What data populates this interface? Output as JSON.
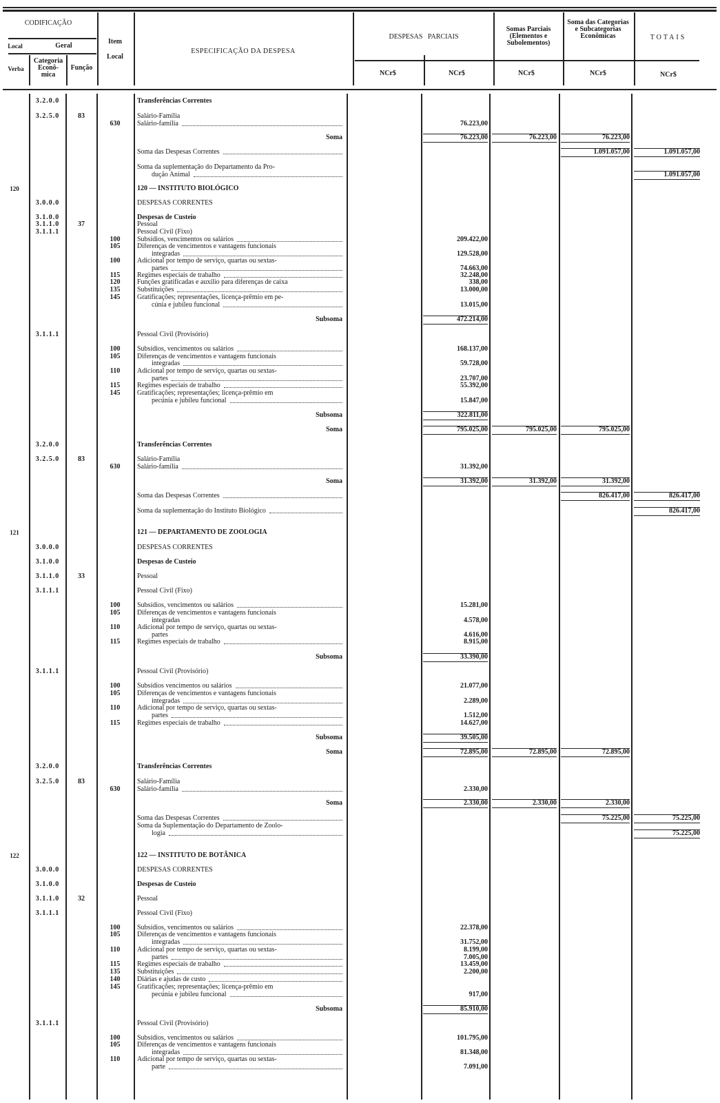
{
  "header": {
    "codificacao": "CODIFICAÇÃO",
    "local": "Local",
    "geral": "Geral",
    "verba": "Verba",
    "categoria_economica": "Categoria Econô- mica",
    "funcao": "Função",
    "item_local": "Item Local",
    "especificacao": "ESPECIFICAÇÃO DA DESPESA",
    "despesas_parciais": "DESPESAS   PARCIAIS",
    "somas_parciais": "Somas Parciais (Elementos e Subolementos)",
    "soma_categorias": "Soma das Categorias e Subcategorias Econômicas",
    "totais": "TOTAIS",
    "currency": "NCr$"
  },
  "lines": [
    {
      "c": "3.2.0.0",
      "t": "Transferências Correntes",
      "s": "bold"
    },
    {
      "c": "3.2.5.0",
      "f": "83",
      "t": "Salário-Família"
    },
    {
      "i": "630",
      "t": "Salário-família",
      "L": true,
      "c2": "76.223,00"
    },
    {
      "t": "Soma",
      "s": "right",
      "c2": "76.223,00",
      "c3": "76.223,00",
      "c4": "76.223,00",
      "tot": true
    },
    {
      "t": "Soma das Despesas Correntes",
      "L": true,
      "c4": "1.091.057,00",
      "c5": "1.091.057,00",
      "tot": true
    },
    {
      "t": "Soma da suplementação do Departamento da Pro-"
    },
    {
      "t": "dução Animal",
      "s": "cont",
      "L": true,
      "c5": "1.091.057,00",
      "tot": true
    },
    {
      "v": "120",
      "t": "120 — INSTITUTO BIOLÓGICO",
      "s": "bold"
    },
    {
      "c": "3.0.0.0",
      "t": "DESPESAS CORRENTES"
    },
    {
      "c": "3.1.0.0",
      "t": "Despesas de Custeio",
      "s": "bold"
    },
    {
      "c": "3.1.1.0",
      "f": "37",
      "t": "Pessoal"
    },
    {
      "c": "3.1.1.1",
      "t": "Pessoal Civil (Fixo)"
    },
    {
      "i": "100",
      "t": "Subsídios, vencimentos ou salários",
      "L": true,
      "c2": "209.422,00"
    },
    {
      "i": "105",
      "t": "Diferenças de vencimentos e vantagens funcionais"
    },
    {
      "t": "integradas",
      "s": "cont",
      "L": true,
      "c2": "129.528,00"
    },
    {
      "i": "100",
      "t": "Adicional por tempo de serviço, quartas ou sextas-"
    },
    {
      "t": "partes",
      "s": "cont",
      "L": true,
      "c2": "74.663,00"
    },
    {
      "i": "115",
      "t": "Regimes especiais de trabalho",
      "L": true,
      "c2": "32.248,00"
    },
    {
      "i": "120",
      "t": "Funções gratificadas e auxílio para diferenças de caixa",
      "c2": "338,00"
    },
    {
      "i": "135",
      "t": "Substituições",
      "L": true,
      "c2": "13.000,00"
    },
    {
      "i": "145",
      "t": "Gratificações; representações, licença-prêmio em pe-"
    },
    {
      "t": "cúnia e jubileu funcional",
      "s": "cont",
      "L": true,
      "c2": "13.015,00"
    },
    {
      "t": "Subsoma",
      "s": "right",
      "c2": "472.214,00",
      "tot": true
    },
    {
      "c": "3.1.1.1",
      "t": "Pessoal Civil (Provisório)"
    },
    {
      "i": "100",
      "t": "Subsídios, vencimentos ou salários",
      "L": true,
      "c2": "168.137,00"
    },
    {
      "i": "105",
      "t": "Diferenças de vencimentos e vantagens funcionais"
    },
    {
      "t": "integradas",
      "s": "cont",
      "L": true,
      "c2": "59.728,00"
    },
    {
      "i": "110",
      "t": "Adicional por tempo de serviço, quartas ou sextas-"
    },
    {
      "t": "partes",
      "s": "cont",
      "L": true,
      "c2": "23.707,00"
    },
    {
      "i": "115",
      "t": "Regimes especiais de trabalho",
      "L": true,
      "c2": "55.392,00"
    },
    {
      "i": "145",
      "t": "Gratificações; representações; licença-prêmio em"
    },
    {
      "t": "pecúnia e jubileu funcional",
      "s": "cont",
      "L": true,
      "c2": "15.847,00"
    },
    {
      "t": "Subsoma",
      "s": "right",
      "c2": "322.811,00",
      "tot": true
    },
    {
      "t": "Soma",
      "s": "right",
      "c2": "795.025,00",
      "c3": "795.025,00",
      "c4": "795.025,00",
      "tot": true
    },
    {
      "c": "3.2.0.0",
      "t": "Transferências Correntes",
      "s": "bold"
    },
    {
      "c": "3.2.5.0",
      "f": "83",
      "t": "Salário-Família"
    },
    {
      "i": "630",
      "t": "Salário-família",
      "L": true,
      "c2": "31.392,00"
    },
    {
      "t": "Soma",
      "s": "right",
      "c2": "31.392,00",
      "c3": "31.392,00",
      "c4": "31.392,00",
      "tot": true
    },
    {
      "t": "Soma das Despesas Correntes",
      "L": true,
      "c4": "826.417,00",
      "c5": "826.417,00",
      "tot": true
    },
    {
      "t": "Soma da suplementação do Instituto Biológico",
      "L": true,
      "c5": "826.417,00",
      "tot": true
    },
    {
      "v": "121",
      "t": "121 — DEPARTAMENTO DE ZOOLOGIA",
      "s": "bold"
    },
    {
      "c": "3.0.0.0",
      "t": "DESPESAS CORRENTES"
    },
    {
      "c": "3.1.0.0",
      "t": "Despesas de Custeio",
      "s": "bold"
    },
    {
      "c": "3.1.1.0",
      "f": "33",
      "t": "Pessoal"
    },
    {
      "c": "3.1.1.1",
      "t": "Pessoal Civil (Fixo)"
    },
    {
      "i": "100",
      "t": "Subsídios, vencimentos ou salários",
      "L": true,
      "c2": "15.281,00"
    },
    {
      "i": "105",
      "t": "Diferenças de vencimentos e vantagens funcionais"
    },
    {
      "t": "integradas",
      "s": "cont",
      "c2": "4.578,00"
    },
    {
      "i": "110",
      "t": "Adicional por tempo de serviço, quartas ou sextas-"
    },
    {
      "t": "partes",
      "s": "cont",
      "c2": "4.616,00"
    },
    {
      "i": "115",
      "t": "Regimes especiais de trabalho",
      "L": true,
      "c2": "8.915,00"
    },
    {
      "t": "Subsoma",
      "s": "right",
      "c2": "33.390,00",
      "tot": true
    },
    {
      "c": "3.1.1.1",
      "t": "Pessoal Civil (Provisório)"
    },
    {
      "i": "100",
      "t": "Subsídios vencimentos ou salários",
      "L": true,
      "c2": "21.077,00"
    },
    {
      "i": "105",
      "t": "Diferenças de vencimentos e vantagens funcionais"
    },
    {
      "t": "integradas",
      "s": "cont",
      "L": true,
      "c2": "2.289,00"
    },
    {
      "i": "110",
      "t": "Adicional por tempo de serviço, quartas ou sextas-"
    },
    {
      "t": "partes",
      "s": "cont",
      "L": true,
      "c2": "1.512,00"
    },
    {
      "i": "115",
      "t": "Regimes especiais de trabalho",
      "L": true,
      "c2": "14.627,00"
    },
    {
      "t": "Subsoma",
      "s": "right",
      "c2": "39.505,00",
      "tot": true
    },
    {
      "t": "Soma",
      "s": "right",
      "c2": "72.895,00",
      "c3": "72.895,00",
      "c4": "72.895,00",
      "tot": true
    },
    {
      "c": "3.2.0.0",
      "t": "Transferências Correntes",
      "s": "bold"
    },
    {
      "c": "3.2.5.0",
      "f": "83",
      "t": "Salário-Família"
    },
    {
      "i": "630",
      "t": "Salário-família",
      "L": true,
      "c2": "2.330,00"
    },
    {
      "t": "Soma",
      "s": "right",
      "c2": "2.330,00",
      "c3": "2.330,00",
      "c4": "2.330,00",
      "tot": true
    },
    {
      "t": "Soma das Despesas Correntes",
      "L": true,
      "c4": "75.225,00",
      "c5": "75.225,00",
      "tot": true
    },
    {
      "t": "Soma da Suplementação do Departamento de Zoolo-"
    },
    {
      "t": "logia",
      "s": "cont",
      "L": true,
      "c5": "75.225,00",
      "tot": true
    },
    {
      "v": "122",
      "t": "122 — INSTITUTO DE BOTÂNICA",
      "s": "bold"
    },
    {
      "c": "3.0.0.0",
      "t": "DESPESAS CORRENTES"
    },
    {
      "c": "3.1.0.0",
      "t": "Despesas de Custeio",
      "s": "bold"
    },
    {
      "c": "3.1.1.0",
      "f": "32",
      "t": "Pessoal"
    },
    {
      "c": "3.1.1.1",
      "t": "Pessoal Civil (Fixo)"
    },
    {
      "i": "100",
      "t": "Subsídios, vencimentos ou salários",
      "L": true,
      "c2": "22.378,00"
    },
    {
      "i": "105",
      "t": "Diferenças de vencimentos e vantagens funcionais"
    },
    {
      "t": "integradas",
      "s": "cont",
      "L": true,
      "c2": "31.752,00"
    },
    {
      "i": "110",
      "t": "Adicional por tempo de serviço, quartas ou sextas-",
      "c2": "8.199,00"
    },
    {
      "t": "partes",
      "s": "cont",
      "L": true,
      "c2": "7.005,00"
    },
    {
      "i": "115",
      "t": "Regimes especiais de trabalho",
      "L": true,
      "c2": "13.459,00"
    },
    {
      "i": "135",
      "t": "Substituições",
      "L": true,
      "c2": "2.200,00"
    },
    {
      "i": "140",
      "t": "Diárias e ajudas de custo",
      "L": true
    },
    {
      "i": "145",
      "t": "Gratificações; representações; licença-prêmio em"
    },
    {
      "t": "pecúnia e jubileu funcional",
      "s": "cont",
      "L": true,
      "c2": "917,00"
    },
    {
      "t": "Subsoma",
      "s": "right",
      "c2": "85.910,00",
      "tot": true
    },
    {
      "c": "3.1.1.1",
      "t": "Pessoal Civil (Provisório)"
    },
    {
      "i": "100",
      "t": "Subsídios, vencimentos ou salários",
      "L": true,
      "c2": "101.795,00"
    },
    {
      "i": "105",
      "t": "Diferenças de vencimentos e vantagens funcionais"
    },
    {
      "t": "integradas",
      "s": "cont",
      "L": true,
      "c2": "81.348,00"
    },
    {
      "i": "110",
      "t": "Adicional por tempo de serviço, quartas ou sextas-"
    },
    {
      "t": "parte",
      "s": "cont",
      "L": true,
      "c2": "7.091,00"
    }
  ]
}
